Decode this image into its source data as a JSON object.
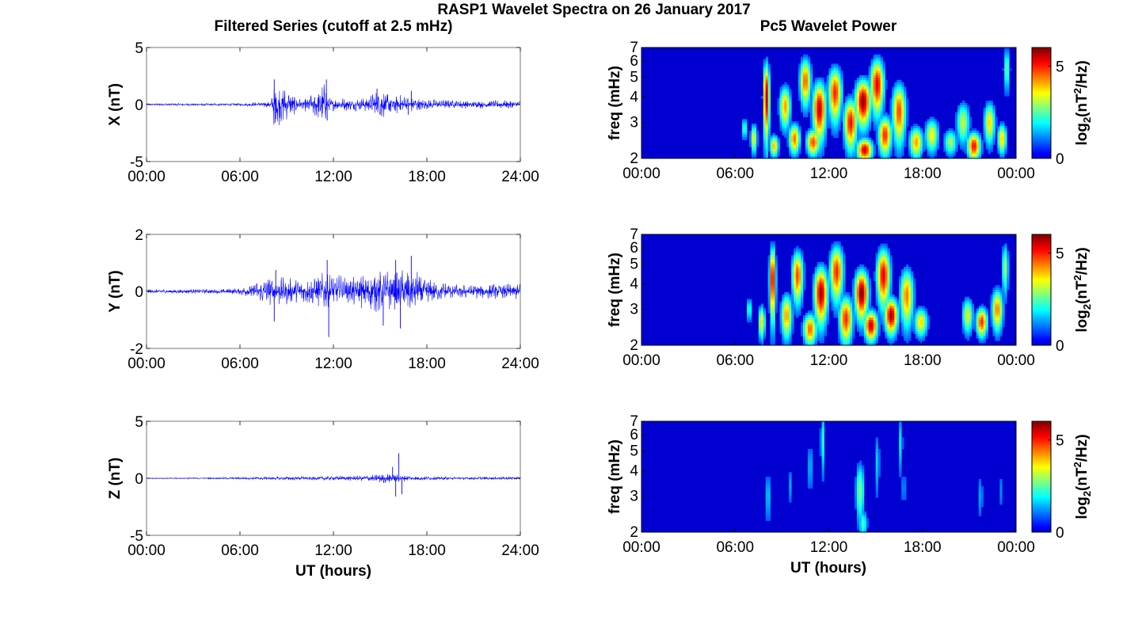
{
  "figure": {
    "title": "RASP1 Wavelet Spectra on 26 January 2017",
    "left_column_title": "Filtered Series (cutoff at 2.5 mHz)",
    "right_column_title": "Pc5 Wavelet Power",
    "x_label": "UT (hours)"
  },
  "chart_data": [
    {
      "type": "line",
      "name": "x-series",
      "ylabel": "X (nT)",
      "ylim": [
        -5,
        5
      ],
      "yticks": [
        -5,
        0,
        5
      ],
      "xlim": [
        0,
        24
      ],
      "xticks": [
        0,
        6,
        12,
        18,
        24
      ],
      "xtick_labels": [
        "00:00",
        "06:00",
        "12:00",
        "18:00",
        "24:00"
      ],
      "series_color": "#0000ff",
      "envelope": {
        "note_free": true,
        "x": [
          0,
          6,
          8,
          8.2,
          10,
          11.5,
          11.6,
          14,
          15,
          16.5,
          18,
          21,
          24
        ],
        "amp": [
          0.1,
          0.12,
          0.3,
          2.2,
          0.4,
          2.0,
          0.6,
          0.6,
          1.4,
          0.8,
          0.5,
          0.35,
          0.4
        ]
      },
      "spikes": [
        {
          "x": 8.2,
          "y": 2.2
        },
        {
          "x": 8.25,
          "y": -1.6
        },
        {
          "x": 11.55,
          "y": 2.2
        },
        {
          "x": 11.6,
          "y": -1.4
        },
        {
          "x": 14.8,
          "y": 1.4
        },
        {
          "x": 15.1,
          "y": -1.0
        },
        {
          "x": 17.0,
          "y": 1.2
        },
        {
          "x": 16.8,
          "y": -0.9
        }
      ]
    },
    {
      "type": "line",
      "name": "y-series",
      "ylabel": "Y (nT)",
      "ylim": [
        -2,
        2
      ],
      "yticks": [
        -2,
        0,
        2
      ],
      "xlim": [
        0,
        24
      ],
      "xticks": [
        0,
        6,
        12,
        18,
        24
      ],
      "xtick_labels": [
        "00:00",
        "06:00",
        "12:00",
        "18:00",
        "24:00"
      ],
      "series_color": "#0000ff",
      "envelope": {
        "x": [
          0,
          4,
          6,
          7,
          8,
          10,
          11.5,
          13,
          15,
          16,
          17,
          18,
          20,
          24
        ],
        "amp": [
          0.08,
          0.08,
          0.12,
          0.35,
          0.6,
          0.4,
          0.7,
          0.5,
          0.8,
          0.7,
          0.9,
          0.45,
          0.25,
          0.3
        ]
      },
      "spikes": [
        {
          "x": 11.6,
          "y": 1.1
        },
        {
          "x": 11.7,
          "y": -1.6
        },
        {
          "x": 16.0,
          "y": 1.1
        },
        {
          "x": 15.2,
          "y": -1.2
        },
        {
          "x": 17.0,
          "y": 1.25
        },
        {
          "x": 16.3,
          "y": -1.3
        },
        {
          "x": 8.2,
          "y": -1.05
        },
        {
          "x": 8.3,
          "y": 0.75
        }
      ]
    },
    {
      "type": "line",
      "name": "z-series",
      "ylabel": "Z (nT)",
      "ylim": [
        -5,
        5
      ],
      "yticks": [
        -5,
        0,
        5
      ],
      "xlim": [
        0,
        24
      ],
      "xticks": [
        0,
        6,
        12,
        18,
        24
      ],
      "xtick_labels": [
        "00:00",
        "06:00",
        "12:00",
        "18:00",
        "24:00"
      ],
      "series_color": "#0000ff",
      "envelope": {
        "x": [
          0,
          4,
          8,
          12,
          14,
          15.5,
          16.2,
          17,
          20,
          24
        ],
        "amp": [
          0.04,
          0.06,
          0.15,
          0.2,
          0.25,
          0.5,
          0.35,
          0.2,
          0.12,
          0.15
        ]
      },
      "spikes": [
        {
          "x": 16.2,
          "y": 2.2
        },
        {
          "x": 16.0,
          "y": -1.6
        },
        {
          "x": 16.4,
          "y": -1.4
        },
        {
          "x": 15.8,
          "y": 1.0
        }
      ]
    },
    {
      "type": "heatmap",
      "name": "x-spectrum",
      "ylabel": "freq (mHz)",
      "yscale": "log",
      "ylim": [
        2,
        7
      ],
      "yticks": [
        2,
        3,
        4,
        5,
        6,
        7
      ],
      "xlim": [
        0,
        24
      ],
      "xticks": [
        0,
        6,
        12,
        18,
        24
      ],
      "xtick_labels": [
        "00:00",
        "06:00",
        "12:00",
        "18:00",
        "00:00"
      ],
      "colorbar_label": "log2(nT2/Hz)",
      "colorbar_ticks": [
        0,
        5
      ],
      "clim": [
        0,
        6
      ],
      "colormap": "jet",
      "blobs": [
        {
          "t": 6.6,
          "f": 2.8,
          "w": 0.12,
          "h": 0.25,
          "v": 2.5
        },
        {
          "t": 7.2,
          "f": 2.5,
          "w": 0.15,
          "h": 0.3,
          "v": 3.5
        },
        {
          "t": 8.0,
          "f": 4.0,
          "w": 0.14,
          "h": 1.2,
          "v": 5.8
        },
        {
          "t": 8.5,
          "f": 2.3,
          "w": 0.2,
          "h": 0.2,
          "v": 4.0
        },
        {
          "t": 9.2,
          "f": 3.6,
          "w": 0.25,
          "h": 0.6,
          "v": 4.2
        },
        {
          "t": 9.8,
          "f": 2.5,
          "w": 0.25,
          "h": 0.3,
          "v": 4.5
        },
        {
          "t": 10.5,
          "f": 4.8,
          "w": 0.25,
          "h": 0.9,
          "v": 4.6
        },
        {
          "t": 11.4,
          "f": 3.5,
          "w": 0.3,
          "h": 0.8,
          "v": 5.6
        },
        {
          "t": 11.0,
          "f": 2.4,
          "w": 0.3,
          "h": 0.25,
          "v": 4.8
        },
        {
          "t": 12.4,
          "f": 4.2,
          "w": 0.3,
          "h": 0.9,
          "v": 5.0
        },
        {
          "t": 13.4,
          "f": 3.0,
          "w": 0.3,
          "h": 0.6,
          "v": 5.2
        },
        {
          "t": 14.2,
          "f": 3.8,
          "w": 0.35,
          "h": 0.7,
          "v": 5.9
        },
        {
          "t": 14.3,
          "f": 2.2,
          "w": 0.35,
          "h": 0.2,
          "v": 5.5
        },
        {
          "t": 15.1,
          "f": 4.6,
          "w": 0.3,
          "h": 1.0,
          "v": 5.4
        },
        {
          "t": 15.6,
          "f": 2.6,
          "w": 0.3,
          "h": 0.4,
          "v": 5.0
        },
        {
          "t": 16.5,
          "f": 3.4,
          "w": 0.3,
          "h": 0.8,
          "v": 4.8
        },
        {
          "t": 17.6,
          "f": 2.4,
          "w": 0.3,
          "h": 0.3,
          "v": 4.2
        },
        {
          "t": 18.6,
          "f": 2.6,
          "w": 0.3,
          "h": 0.35,
          "v": 3.6
        },
        {
          "t": 19.8,
          "f": 2.4,
          "w": 0.3,
          "h": 0.25,
          "v": 3.0
        },
        {
          "t": 20.6,
          "f": 3.0,
          "w": 0.3,
          "h": 0.5,
          "v": 3.2
        },
        {
          "t": 21.3,
          "f": 2.3,
          "w": 0.3,
          "h": 0.25,
          "v": 5.2
        },
        {
          "t": 22.3,
          "f": 3.0,
          "w": 0.25,
          "h": 0.5,
          "v": 3.8
        },
        {
          "t": 23.1,
          "f": 2.5,
          "w": 0.2,
          "h": 0.3,
          "v": 4.0
        },
        {
          "t": 23.4,
          "f": 5.5,
          "w": 0.15,
          "h": 1.0,
          "v": 2.6
        }
      ]
    },
    {
      "type": "heatmap",
      "name": "y-spectrum",
      "ylabel": "freq (mHz)",
      "yscale": "log",
      "ylim": [
        2,
        7
      ],
      "yticks": [
        2,
        3,
        4,
        5,
        6,
        7
      ],
      "xlim": [
        0,
        24
      ],
      "xticks": [
        0,
        6,
        12,
        18,
        24
      ],
      "xtick_labels": [
        "00:00",
        "06:00",
        "12:00",
        "18:00",
        "00:00"
      ],
      "colorbar_label": "log2(nT2/Hz)",
      "colorbar_ticks": [
        0,
        5
      ],
      "clim": [
        0,
        6
      ],
      "colormap": "jet",
      "blobs": [
        {
          "t": 6.9,
          "f": 3.0,
          "w": 0.12,
          "h": 0.3,
          "v": 2.4
        },
        {
          "t": 7.7,
          "f": 2.6,
          "w": 0.15,
          "h": 0.35,
          "v": 3.8
        },
        {
          "t": 8.4,
          "f": 4.2,
          "w": 0.14,
          "h": 1.2,
          "v": 5.6
        },
        {
          "t": 9.3,
          "f": 2.8,
          "w": 0.25,
          "h": 0.5,
          "v": 4.2
        },
        {
          "t": 10.0,
          "f": 4.4,
          "w": 0.25,
          "h": 0.9,
          "v": 4.8
        },
        {
          "t": 10.8,
          "f": 2.4,
          "w": 0.3,
          "h": 0.3,
          "v": 4.6
        },
        {
          "t": 11.5,
          "f": 3.6,
          "w": 0.3,
          "h": 0.8,
          "v": 5.8
        },
        {
          "t": 12.5,
          "f": 4.6,
          "w": 0.3,
          "h": 1.0,
          "v": 5.0
        },
        {
          "t": 13.1,
          "f": 2.7,
          "w": 0.3,
          "h": 0.5,
          "v": 5.0
        },
        {
          "t": 14.1,
          "f": 3.6,
          "w": 0.3,
          "h": 0.7,
          "v": 6.0
        },
        {
          "t": 14.7,
          "f": 2.5,
          "w": 0.3,
          "h": 0.3,
          "v": 5.6
        },
        {
          "t": 15.5,
          "f": 4.4,
          "w": 0.3,
          "h": 1.0,
          "v": 5.4
        },
        {
          "t": 16.0,
          "f": 2.8,
          "w": 0.3,
          "h": 0.4,
          "v": 5.8
        },
        {
          "t": 17.0,
          "f": 3.5,
          "w": 0.3,
          "h": 0.8,
          "v": 4.4
        },
        {
          "t": 17.9,
          "f": 2.6,
          "w": 0.3,
          "h": 0.3,
          "v": 3.8
        },
        {
          "t": 20.9,
          "f": 2.8,
          "w": 0.25,
          "h": 0.4,
          "v": 3.4
        },
        {
          "t": 21.8,
          "f": 2.6,
          "w": 0.25,
          "h": 0.3,
          "v": 5.0
        },
        {
          "t": 22.8,
          "f": 3.0,
          "w": 0.25,
          "h": 0.5,
          "v": 4.4
        },
        {
          "t": 23.3,
          "f": 4.8,
          "w": 0.15,
          "h": 1.0,
          "v": 3.0
        }
      ]
    },
    {
      "type": "heatmap",
      "name": "z-spectrum",
      "ylabel": "freq (mHz)",
      "yscale": "log",
      "ylim": [
        2,
        7
      ],
      "yticks": [
        2,
        3,
        4,
        5,
        6,
        7
      ],
      "xlim": [
        0,
        24
      ],
      "xticks": [
        0,
        6,
        12,
        18,
        24
      ],
      "xtick_labels": [
        "00:00",
        "06:00",
        "12:00",
        "18:00",
        "00:00"
      ],
      "colorbar_label": "log2(nT2/Hz)",
      "colorbar_ticks": [
        0,
        5
      ],
      "clim": [
        0,
        6
      ],
      "colormap": "jet",
      "blobs": [
        {
          "t": 8.1,
          "f": 3.0,
          "w": 0.1,
          "h": 0.7,
          "v": 1.9
        },
        {
          "t": 9.5,
          "f": 3.4,
          "w": 0.12,
          "h": 0.6,
          "v": 1.4
        },
        {
          "t": 10.8,
          "f": 4.2,
          "w": 0.12,
          "h": 1.0,
          "v": 1.6
        },
        {
          "t": 11.6,
          "f": 5.6,
          "w": 0.1,
          "h": 1.5,
          "v": 2.2
        },
        {
          "t": 14.0,
          "f": 3.2,
          "w": 0.2,
          "h": 0.8,
          "v": 2.8
        },
        {
          "t": 14.2,
          "f": 2.2,
          "w": 0.2,
          "h": 0.25,
          "v": 2.4
        },
        {
          "t": 15.1,
          "f": 4.4,
          "w": 0.12,
          "h": 1.2,
          "v": 1.7
        },
        {
          "t": 16.6,
          "f": 5.5,
          "w": 0.1,
          "h": 1.4,
          "v": 1.9
        },
        {
          "t": 16.8,
          "f": 3.3,
          "w": 0.12,
          "h": 0.6,
          "v": 1.3
        },
        {
          "t": 21.7,
          "f": 3.0,
          "w": 0.15,
          "h": 0.6,
          "v": 1.4
        },
        {
          "t": 23.0,
          "f": 3.2,
          "w": 0.12,
          "h": 0.6,
          "v": 1.2
        }
      ]
    }
  ]
}
